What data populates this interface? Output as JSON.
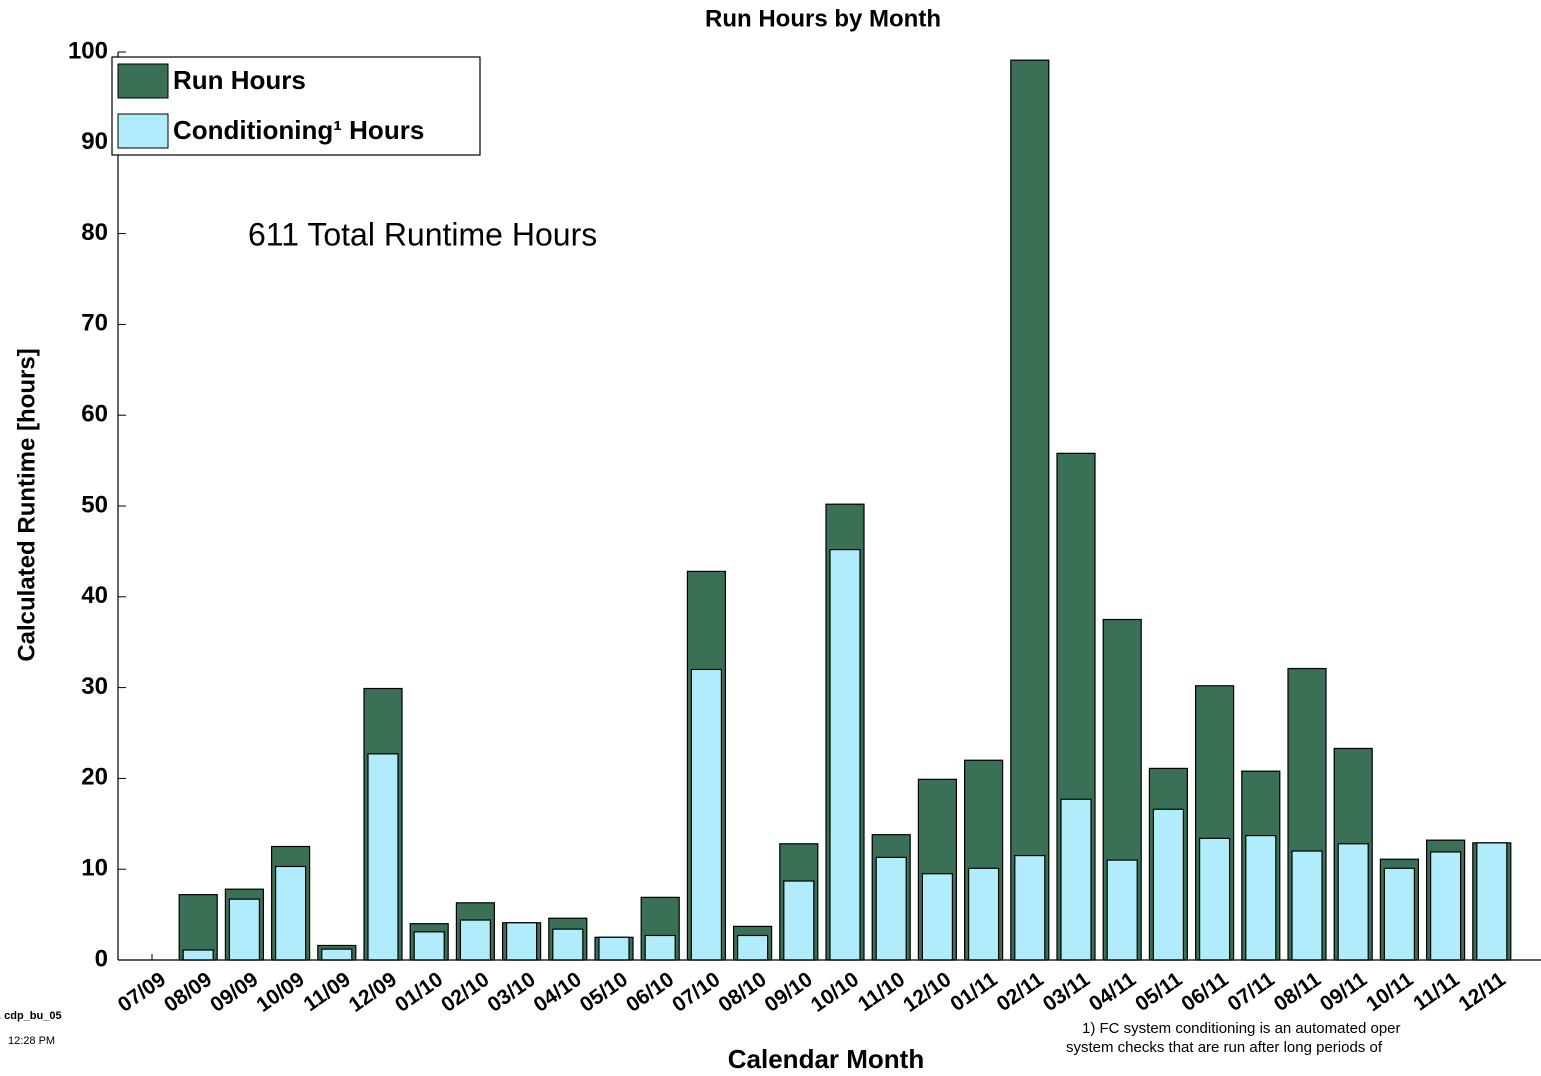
{
  "chart_data": {
    "type": "bar",
    "title": "Run Hours by Month",
    "y_label": "Calculated Runtime [hours]",
    "x_label": "Calendar Month",
    "annotation": "611 Total Runtime Hours",
    "footnote": [
      "1) FC system conditioning is an automated oper",
      "system checks that are run after long periods of"
    ],
    "side_notes": [
      ". cdp_bu_05",
      "12:28 PM"
    ],
    "categories": [
      "07/09",
      "08/09",
      "09/09",
      "10/09",
      "11/09",
      "12/09",
      "01/10",
      "02/10",
      "03/10",
      "04/10",
      "05/10",
      "06/10",
      "07/10",
      "08/10",
      "09/10",
      "10/10",
      "11/10",
      "12/10",
      "01/11",
      "02/11",
      "03/11",
      "04/11",
      "05/11",
      "06/11",
      "07/11",
      "08/11",
      "09/11",
      "10/11",
      "11/11",
      "12/11"
    ],
    "series": [
      {
        "name": "Run Hours",
        "color": "#3a7055",
        "values": [
          0,
          7.2,
          7.8,
          12.5,
          1.6,
          29.9,
          4.0,
          6.3,
          4.1,
          4.6,
          2.5,
          6.9,
          42.8,
          3.7,
          12.8,
          50.2,
          13.8,
          19.9,
          22.0,
          99.1,
          55.8,
          37.5,
          21.1,
          30.2,
          20.8,
          32.1,
          23.3,
          11.1,
          13.2,
          12.9
        ]
      },
      {
        "name": "Conditioning¹ Hours",
        "color": "#b0ecfb",
        "values": [
          0,
          1.1,
          6.7,
          10.3,
          1.2,
          22.7,
          3.1,
          4.4,
          4.1,
          3.4,
          2.5,
          2.7,
          32.0,
          2.7,
          8.7,
          45.2,
          11.3,
          9.5,
          10.1,
          11.5,
          17.7,
          11.0,
          16.6,
          13.4,
          13.7,
          12.0,
          12.8,
          10.1,
          11.9,
          12.9
        ]
      }
    ],
    "ylim": [
      0,
      100
    ],
    "yticks": [
      0,
      10,
      20,
      30,
      40,
      50,
      60,
      70,
      80,
      90,
      100
    ],
    "legend": "upper left"
  }
}
